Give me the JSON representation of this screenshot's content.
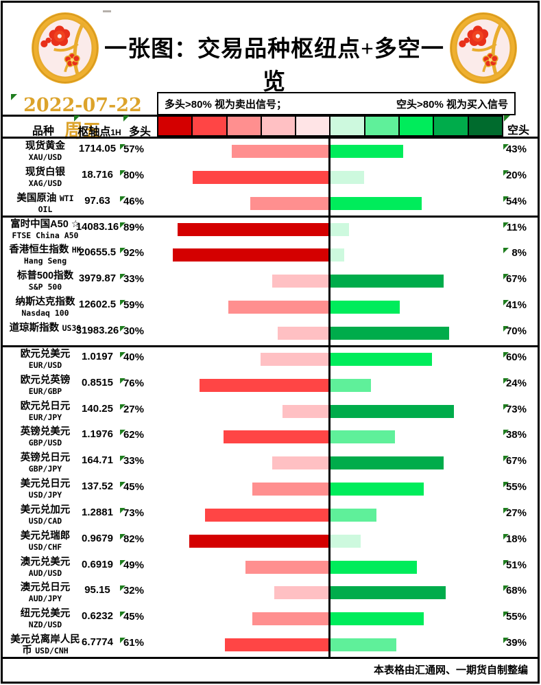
{
  "banner": {
    "title": "一张图：交易品种枢纽点+多空一览"
  },
  "date_line": {
    "date": "2022-07-22 周五",
    "date_color": "#DCA32B"
  },
  "legend": {
    "long_note": "多头>80% 视为卖出信号；",
    "short_note": "空头>80% 视为买入信号",
    "swatch_colors": [
      "#D40000",
      "#FF4545",
      "#FF8F8F",
      "#FFC0C3",
      "#FFE4E6",
      "#CDF9DE",
      "#5FF09A",
      "#00EC5B",
      "#00AC4B",
      "#006B2D"
    ]
  },
  "table": {
    "headers": {
      "instrument": "品种",
      "pivot": "枢轴点",
      "pivot_suffix": "1H",
      "long": "多头",
      "short": "空头"
    },
    "group_dividers_after": [
      2,
      7
    ],
    "rows": [
      {
        "cn": "现货黄金",
        "en": "XAU/USD",
        "pivot": "1714.05",
        "long": 57,
        "short": 43
      },
      {
        "cn": "现货白银",
        "en": "XAG/USD",
        "pivot": "18.716",
        "long": 80,
        "short": 20
      },
      {
        "cn": "美国原油",
        "en": "WTI OIL",
        "pivot": "97.63",
        "long": 46,
        "short": 54
      },
      {
        "cn": "富时中国A50 ☆",
        "en": "FTSE China A50",
        "pivot": "14083.16",
        "long": 89,
        "short": 11
      },
      {
        "cn": "香港恒生指数",
        "en": "HK Hang Seng",
        "pivot": "20655.5",
        "long": 92,
        "short": 8
      },
      {
        "cn": "标普500指数",
        "en": "S&P 500",
        "pivot": "3979.87",
        "long": 33,
        "short": 67
      },
      {
        "cn": "纳斯达克指数",
        "en": "Nasdaq 100",
        "pivot": "12602.5",
        "long": 59,
        "short": 41
      },
      {
        "cn": "道琼斯指数",
        "en": "US30",
        "pivot": "31983.26",
        "long": 30,
        "short": 70
      },
      {
        "cn": "欧元兑美元",
        "en": "EUR/USD",
        "pivot": "1.0197",
        "long": 40,
        "short": 60
      },
      {
        "cn": "欧元兑英镑",
        "en": "EUR/GBP",
        "pivot": "0.8515",
        "long": 76,
        "short": 24
      },
      {
        "cn": "欧元兑日元",
        "en": "EUR/JPY",
        "pivot": "140.25",
        "long": 27,
        "short": 73
      },
      {
        "cn": "英镑兑美元",
        "en": "GBP/USD",
        "pivot": "1.1976",
        "long": 62,
        "short": 38
      },
      {
        "cn": "英镑兑日元",
        "en": "GBP/JPY",
        "pivot": "164.71",
        "long": 33,
        "short": 67
      },
      {
        "cn": "美元兑日元",
        "en": "USD/JPY",
        "pivot": "137.52",
        "long": 45,
        "short": 55
      },
      {
        "cn": "美元兑加元",
        "en": "USD/CAD",
        "pivot": "1.2881",
        "long": 73,
        "short": 27
      },
      {
        "cn": "美元兑瑞郎",
        "en": "USD/CHF",
        "pivot": "0.9679",
        "long": 82,
        "short": 18
      },
      {
        "cn": "澳元兑美元",
        "en": "AUD/USD",
        "pivot": "0.6919",
        "long": 49,
        "short": 51
      },
      {
        "cn": "澳元兑日元",
        "en": "AUD/JPY",
        "pivot": "95.15",
        "long": 32,
        "short": 68
      },
      {
        "cn": "纽元兑美元",
        "en": "NZD/USD",
        "pivot": "0.6232",
        "long": 45,
        "short": 55
      },
      {
        "cn": "美元兑离岸人民币",
        "en": "USD/CNH",
        "pivot": "6.7774",
        "long": 61,
        "short": 39
      }
    ]
  },
  "footer": {
    "credit": "本表格由汇通网、一期货自制整编"
  },
  "colors": {
    "long_bins": [
      "#FFE4E6",
      "#FFC0C3",
      "#FF8F8F",
      "#FF4545",
      "#D40000"
    ],
    "short_bins": [
      "#CDF9DE",
      "#5FF09A",
      "#00EC5B",
      "#00AC4B",
      "#006B2D"
    ],
    "marker": "#1E7D1E",
    "axis": "#000000"
  },
  "chart_data": {
    "type": "bar",
    "subtype": "horizontal-diverging",
    "title": "一张图：交易品种枢纽点+多空一览",
    "date": "2022-07-22 周五",
    "legend_notes": [
      "多头>80% 视为卖出信号；",
      "空头>80% 视为买入信号"
    ],
    "legend_position": "top",
    "categories": [
      "XAU/USD",
      "XAG/USD",
      "WTI OIL",
      "FTSE China A50",
      "HK Hang Seng",
      "S&P 500",
      "Nasdaq 100",
      "US30",
      "EUR/USD",
      "EUR/GBP",
      "EUR/JPY",
      "GBP/USD",
      "GBP/JPY",
      "USD/JPY",
      "USD/CAD",
      "USD/CHF",
      "AUD/USD",
      "AUD/JPY",
      "NZD/USD",
      "USD/CNH"
    ],
    "series": [
      {
        "name": "多头",
        "side": "left",
        "values": [
          57,
          80,
          46,
          89,
          92,
          33,
          59,
          30,
          40,
          76,
          27,
          62,
          33,
          45,
          73,
          82,
          49,
          32,
          45,
          61
        ]
      },
      {
        "name": "空头",
        "side": "right",
        "values": [
          43,
          20,
          54,
          11,
          8,
          67,
          41,
          70,
          60,
          24,
          73,
          38,
          67,
          55,
          27,
          18,
          51,
          68,
          55,
          39
        ]
      }
    ],
    "pivot_1h": [
      1714.05,
      18.716,
      97.63,
      14083.16,
      20655.5,
      3979.87,
      12602.5,
      31983.26,
      1.0197,
      0.8515,
      140.25,
      1.1976,
      164.71,
      137.52,
      1.2881,
      0.9679,
      0.6919,
      95.15,
      0.6232,
      6.7774
    ],
    "xlim_each_side": [
      0,
      100
    ],
    "grid": false,
    "color_binning_percent": [
      20,
      40,
      60,
      80,
      100
    ]
  }
}
